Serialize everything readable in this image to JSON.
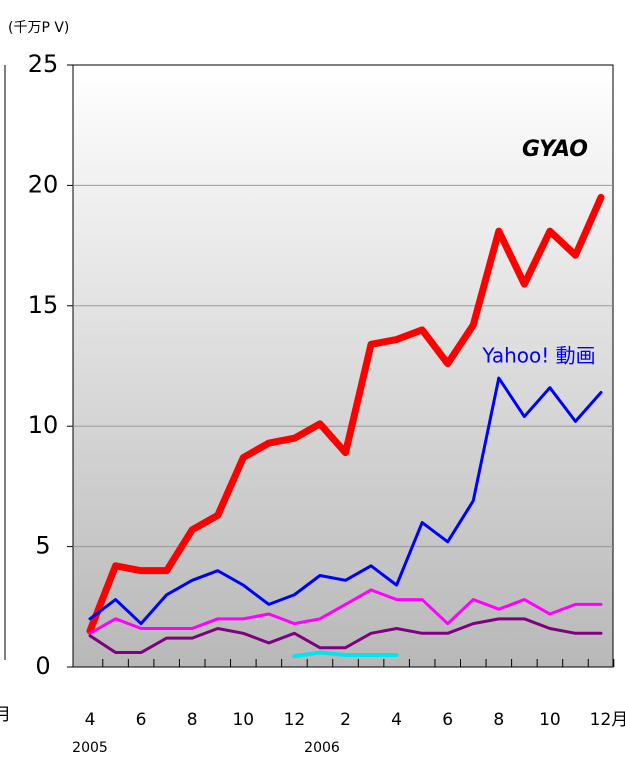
{
  "chart_data": {
    "type": "line",
    "y_unit": "(千万P V)",
    "categories": [
      "4",
      null,
      "6",
      null,
      "8",
      null,
      "10",
      null,
      "12",
      null,
      "2",
      null,
      "4",
      null,
      "6",
      null,
      "8",
      null,
      "10",
      null,
      "12月"
    ],
    "year_labels": [
      "2005",
      "2006"
    ],
    "edge_label": "月",
    "ylim": [
      0,
      25
    ],
    "yticks": [
      0,
      5,
      10,
      15,
      20,
      25
    ],
    "grid": true,
    "series": [
      {
        "name": "GYAO",
        "color": "#ff0000",
        "values": [
          1.5,
          4.2,
          4.0,
          4.0,
          5.7,
          6.3,
          8.7,
          9.3,
          9.5,
          10.1,
          8.9,
          13.4,
          13.6,
          14.0,
          12.6,
          14.2,
          18.1,
          15.9,
          18.1,
          17.1,
          19.5
        ]
      },
      {
        "name": "Yahoo! 動画",
        "color": "#0000ff",
        "values": [
          2.0,
          2.8,
          1.8,
          3.0,
          3.6,
          4.0,
          3.4,
          2.6,
          3.0,
          3.8,
          3.6,
          4.2,
          3.4,
          6.0,
          5.2,
          6.9,
          12.0,
          10.4,
          11.6,
          10.2,
          11.4
        ]
      },
      {
        "color": "#ff00ff",
        "values": [
          1.4,
          2.0,
          1.6,
          1.6,
          1.6,
          2.0,
          2.0,
          2.2,
          1.8,
          2.0,
          2.6,
          3.2,
          2.8,
          2.8,
          1.8,
          2.8,
          2.4,
          2.8,
          2.2,
          2.6,
          2.6
        ]
      },
      {
        "color": "#800080",
        "values": [
          1.3,
          0.6,
          0.6,
          1.2,
          1.2,
          1.6,
          1.4,
          1.0,
          1.4,
          0.8,
          0.8,
          1.4,
          1.6,
          1.4,
          1.4,
          1.8,
          2.0,
          2.0,
          1.6,
          1.4,
          1.4
        ]
      },
      {
        "color": "#00e5ee",
        "values": [
          null,
          null,
          null,
          null,
          null,
          null,
          null,
          null,
          0.45,
          0.6,
          0.5,
          0.5,
          0.5,
          null,
          null,
          null,
          null,
          null,
          null,
          null,
          null
        ]
      }
    ]
  }
}
